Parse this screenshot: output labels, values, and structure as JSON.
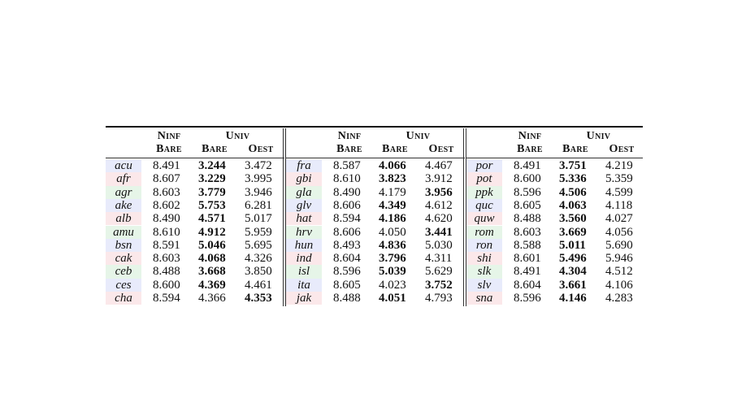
{
  "table": {
    "headers": {
      "ninf": "Ninf",
      "univ": "Univ",
      "bare": "Bare",
      "oest": "Oest"
    },
    "panels": [
      {
        "rows": [
          {
            "lang": "acu",
            "ninf_bare": "8.491",
            "univ_bare": "3.244",
            "univ_oest": "3.472",
            "bold": "univ_bare"
          },
          {
            "lang": "afr",
            "ninf_bare": "8.607",
            "univ_bare": "3.229",
            "univ_oest": "3.995",
            "bold": "univ_bare"
          },
          {
            "lang": "agr",
            "ninf_bare": "8.603",
            "univ_bare": "3.779",
            "univ_oest": "3.946",
            "bold": "univ_bare"
          },
          {
            "lang": "ake",
            "ninf_bare": "8.602",
            "univ_bare": "5.753",
            "univ_oest": "6.281",
            "bold": "univ_bare"
          },
          {
            "lang": "alb",
            "ninf_bare": "8.490",
            "univ_bare": "4.571",
            "univ_oest": "5.017",
            "bold": "univ_bare"
          },
          {
            "lang": "amu",
            "ninf_bare": "8.610",
            "univ_bare": "4.912",
            "univ_oest": "5.959",
            "bold": "univ_bare"
          },
          {
            "lang": "bsn",
            "ninf_bare": "8.591",
            "univ_bare": "5.046",
            "univ_oest": "5.695",
            "bold": "univ_bare"
          },
          {
            "lang": "cak",
            "ninf_bare": "8.603",
            "univ_bare": "4.068",
            "univ_oest": "4.326",
            "bold": "univ_bare"
          },
          {
            "lang": "ceb",
            "ninf_bare": "8.488",
            "univ_bare": "3.668",
            "univ_oest": "3.850",
            "bold": "univ_bare"
          },
          {
            "lang": "ces",
            "ninf_bare": "8.600",
            "univ_bare": "4.369",
            "univ_oest": "4.461",
            "bold": "univ_bare"
          },
          {
            "lang": "cha",
            "ninf_bare": "8.594",
            "univ_bare": "4.366",
            "univ_oest": "4.353",
            "bold": "univ_oest"
          }
        ]
      },
      {
        "rows": [
          {
            "lang": "fra",
            "ninf_bare": "8.587",
            "univ_bare": "4.066",
            "univ_oest": "4.467",
            "bold": "univ_bare"
          },
          {
            "lang": "gbi",
            "ninf_bare": "8.610",
            "univ_bare": "3.823",
            "univ_oest": "3.912",
            "bold": "univ_bare"
          },
          {
            "lang": "gla",
            "ninf_bare": "8.490",
            "univ_bare": "4.179",
            "univ_oest": "3.956",
            "bold": "univ_oest"
          },
          {
            "lang": "glv",
            "ninf_bare": "8.606",
            "univ_bare": "4.349",
            "univ_oest": "4.612",
            "bold": "univ_bare"
          },
          {
            "lang": "hat",
            "ninf_bare": "8.594",
            "univ_bare": "4.186",
            "univ_oest": "4.620",
            "bold": "univ_bare"
          },
          {
            "lang": "hrv",
            "ninf_bare": "8.606",
            "univ_bare": "4.050",
            "univ_oest": "3.441",
            "bold": "univ_oest"
          },
          {
            "lang": "hun",
            "ninf_bare": "8.493",
            "univ_bare": "4.836",
            "univ_oest": "5.030",
            "bold": "univ_bare"
          },
          {
            "lang": "ind",
            "ninf_bare": "8.604",
            "univ_bare": "3.796",
            "univ_oest": "4.311",
            "bold": "univ_bare"
          },
          {
            "lang": "isl",
            "ninf_bare": "8.596",
            "univ_bare": "5.039",
            "univ_oest": "5.629",
            "bold": "univ_bare"
          },
          {
            "lang": "ita",
            "ninf_bare": "8.605",
            "univ_bare": "4.023",
            "univ_oest": "3.752",
            "bold": "univ_oest"
          },
          {
            "lang": "jak",
            "ninf_bare": "8.488",
            "univ_bare": "4.051",
            "univ_oest": "4.793",
            "bold": "univ_bare"
          }
        ]
      },
      {
        "rows": [
          {
            "lang": "por",
            "ninf_bare": "8.491",
            "univ_bare": "3.751",
            "univ_oest": "4.219",
            "bold": "univ_bare"
          },
          {
            "lang": "pot",
            "ninf_bare": "8.600",
            "univ_bare": "5.336",
            "univ_oest": "5.359",
            "bold": "univ_bare"
          },
          {
            "lang": "ppk",
            "ninf_bare": "8.596",
            "univ_bare": "4.506",
            "univ_oest": "4.599",
            "bold": "univ_bare"
          },
          {
            "lang": "quc",
            "ninf_bare": "8.605",
            "univ_bare": "4.063",
            "univ_oest": "4.118",
            "bold": "univ_bare"
          },
          {
            "lang": "quw",
            "ninf_bare": "8.488",
            "univ_bare": "3.560",
            "univ_oest": "4.027",
            "bold": "univ_bare"
          },
          {
            "lang": "rom",
            "ninf_bare": "8.603",
            "univ_bare": "3.669",
            "univ_oest": "4.056",
            "bold": "univ_bare"
          },
          {
            "lang": "ron",
            "ninf_bare": "8.588",
            "univ_bare": "5.011",
            "univ_oest": "5.690",
            "bold": "univ_bare"
          },
          {
            "lang": "shi",
            "ninf_bare": "8.601",
            "univ_bare": "5.496",
            "univ_oest": "5.946",
            "bold": "univ_bare"
          },
          {
            "lang": "slk",
            "ninf_bare": "8.491",
            "univ_bare": "4.304",
            "univ_oest": "4.512",
            "bold": "univ_bare"
          },
          {
            "lang": "slv",
            "ninf_bare": "8.604",
            "univ_bare": "3.661",
            "univ_oest": "4.106",
            "bold": "univ_bare"
          },
          {
            "lang": "sna",
            "ninf_bare": "8.596",
            "univ_bare": "4.146",
            "univ_oest": "4.283",
            "bold": "univ_bare"
          }
        ]
      }
    ],
    "lang_bg_colors": [
      "#e8ebfb",
      "#fbe8ea",
      "#e6f5e8"
    ]
  }
}
